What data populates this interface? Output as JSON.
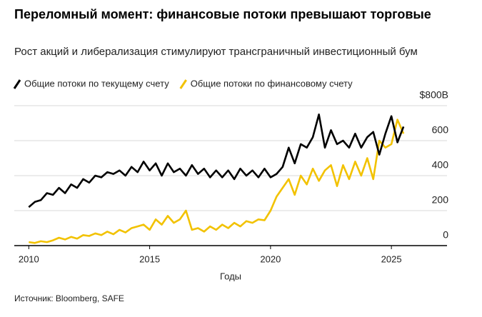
{
  "chart_data": {
    "type": "line",
    "title": "Переломный момент: финансовые потоки превышают торговые",
    "subtitle": "Рост акций и либерализация стимулируют трансграничный инвестиционный бум",
    "x_label": "Годы",
    "source": "Источник: Bloomberg, SAFE",
    "x": [
      2010.0,
      2010.25,
      2010.5,
      2010.75,
      2011.0,
      2011.25,
      2011.5,
      2011.75,
      2012.0,
      2012.25,
      2012.5,
      2012.75,
      2013.0,
      2013.25,
      2013.5,
      2013.75,
      2014.0,
      2014.25,
      2014.5,
      2014.75,
      2015.0,
      2015.25,
      2015.5,
      2015.75,
      2016.0,
      2016.25,
      2016.5,
      2016.75,
      2017.0,
      2017.25,
      2017.5,
      2017.75,
      2018.0,
      2018.25,
      2018.5,
      2018.75,
      2019.0,
      2019.25,
      2019.5,
      2019.75,
      2020.0,
      2020.25,
      2020.5,
      2020.75,
      2021.0,
      2021.25,
      2021.5,
      2021.75,
      2022.0,
      2022.25,
      2022.5,
      2022.75,
      2023.0,
      2023.25,
      2023.5,
      2023.75,
      2024.0,
      2024.25,
      2024.5,
      2024.75,
      2025.0,
      2025.25,
      2025.5
    ],
    "series": [
      {
        "name": "Общие потоки по текущему счету",
        "color": "#000000",
        "values": [
          220,
          250,
          260,
          300,
          290,
          330,
          300,
          350,
          330,
          380,
          360,
          400,
          390,
          420,
          410,
          430,
          400,
          450,
          420,
          480,
          430,
          470,
          400,
          470,
          420,
          440,
          400,
          460,
          410,
          440,
          390,
          430,
          390,
          430,
          380,
          440,
          400,
          430,
          390,
          440,
          390,
          410,
          450,
          560,
          470,
          580,
          560,
          620,
          750,
          560,
          660,
          580,
          600,
          560,
          640,
          560,
          620,
          650,
          520,
          640,
          740,
          590,
          680
        ]
      },
      {
        "name": "Общие потоки по финансовому счету",
        "color": "#f2c200",
        "values": [
          20,
          15,
          25,
          20,
          30,
          45,
          35,
          50,
          40,
          60,
          55,
          70,
          60,
          80,
          65,
          90,
          75,
          100,
          110,
          120,
          90,
          150,
          120,
          170,
          130,
          150,
          200,
          90,
          100,
          80,
          110,
          90,
          120,
          100,
          130,
          110,
          140,
          130,
          150,
          145,
          200,
          280,
          330,
          380,
          290,
          400,
          350,
          440,
          370,
          430,
          460,
          340,
          460,
          380,
          480,
          400,
          500,
          380,
          600,
          560,
          580,
          720,
          640
        ]
      }
    ],
    "xlim": [
      2009.4,
      2027.3
    ],
    "xticks": [
      2010,
      2015,
      2020,
      2025
    ],
    "ylim": [
      0,
      800
    ],
    "yticks": [
      0,
      200,
      400,
      600,
      {
        "value": 800,
        "label": "$800B"
      }
    ],
    "grid": true
  }
}
